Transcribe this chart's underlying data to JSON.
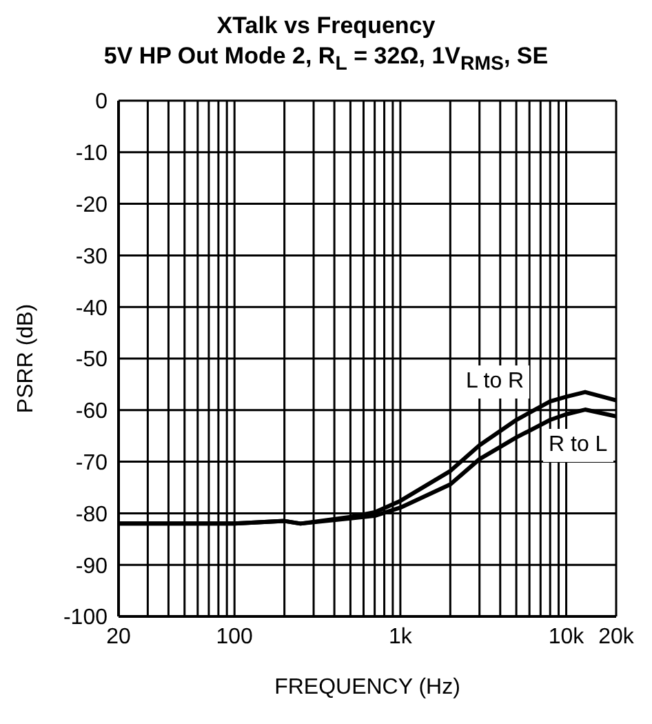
{
  "chart_data": {
    "type": "line",
    "title": "XTalk vs Frequency",
    "subtitle": "5V HP Out Mode 2, R$_{L}$ = 32Ω, 1V$_{RMS}$, SE",
    "xlabel": "FREQUENCY (Hz)",
    "ylabel": "PSRR (dB)",
    "log": "x",
    "grid": true,
    "line_style": "solid",
    "marker": "none",
    "xlim": [
      20,
      20000
    ],
    "xticks": [
      20,
      {
        "value": 30,
        "label": null
      },
      {
        "value": 40,
        "label": null
      },
      {
        "value": 50,
        "label": null
      },
      {
        "value": 60,
        "label": null
      },
      {
        "value": 70,
        "label": null
      },
      {
        "value": 80,
        "label": null
      },
      {
        "value": 90,
        "label": null
      },
      100,
      {
        "value": 200,
        "label": null
      },
      {
        "value": 300,
        "label": null
      },
      {
        "value": 400,
        "label": null
      },
      {
        "value": 500,
        "label": null
      },
      {
        "value": 600,
        "label": null
      },
      {
        "value": 700,
        "label": null
      },
      {
        "value": 800,
        "label": null
      },
      {
        "value": 900,
        "label": null
      },
      {
        "value": 1000,
        "label": "1k"
      },
      {
        "value": 2000,
        "label": null
      },
      {
        "value": 3000,
        "label": null
      },
      {
        "value": 4000,
        "label": null
      },
      {
        "value": 5000,
        "label": null
      },
      {
        "value": 6000,
        "label": null
      },
      {
        "value": 7000,
        "label": null
      },
      {
        "value": 8000,
        "label": null
      },
      {
        "value": 9000,
        "label": null
      },
      {
        "value": 10000,
        "label": "10k"
      },
      {
        "value": 20000,
        "label": "20k"
      }
    ],
    "ylim": [
      -100,
      0
    ],
    "yticks": [
      -100,
      -90,
      -80,
      -70,
      -60,
      -50,
      -40,
      -30,
      -20,
      -10,
      0
    ],
    "x": [
      20,
      50,
      100,
      200,
      250,
      500,
      700,
      1000,
      2000,
      3000,
      5000,
      8000,
      10000,
      13000,
      20000
    ],
    "series": [
      {
        "color": "#000000",
        "values": [
          -82,
          -82,
          -82,
          -81.5,
          -82,
          -80.7,
          -79.8,
          -77.6,
          -71.8,
          -66.8,
          -61.9,
          -58.3,
          -57.4,
          -56.5,
          -58.1
        ]
      },
      {
        "color": "#000000",
        "values": [
          -82,
          -82,
          -82,
          -81.5,
          -82,
          -81,
          -80.5,
          -78.9,
          -74.4,
          -69.5,
          -65.3,
          -61.9,
          -60.8,
          -59.9,
          -61.2
        ]
      }
    ],
    "annotations": [
      "L to R",
      "R to L"
    ]
  }
}
